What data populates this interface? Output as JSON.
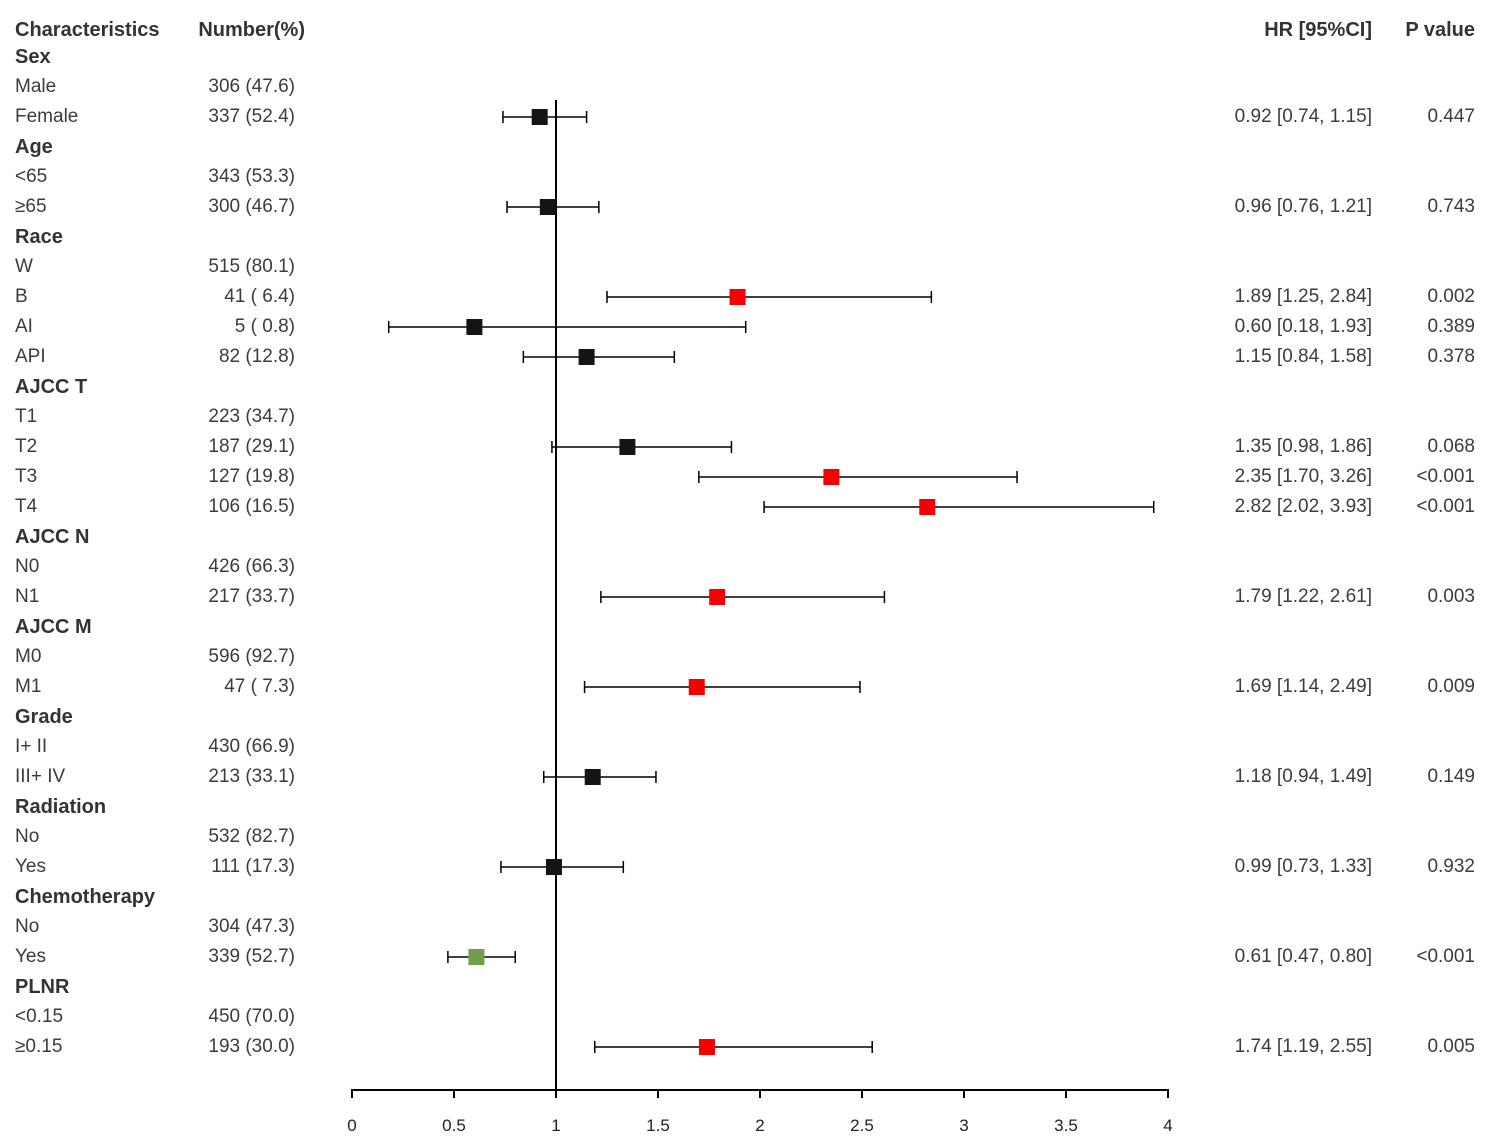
{
  "header": {
    "characteristics": "Characteristics",
    "number": "Number(%)",
    "hr": "HR [95%CI]",
    "p": "P value"
  },
  "chart_data": {
    "type": "forest",
    "title": "",
    "x_axis": {
      "min": 0,
      "max": 4,
      "ticks": [
        0,
        0.5,
        1,
        1.5,
        2,
        2.5,
        3,
        3.5,
        4
      ],
      "reference_line": 1
    },
    "colors": {
      "black": "#141414",
      "red": "#f40000",
      "green": "#6f9e4e"
    },
    "rows": [
      {
        "type": "section",
        "label": "Sex"
      },
      {
        "type": "item",
        "label": "Male",
        "number": "306 (47.6)"
      },
      {
        "type": "item",
        "label": "Female",
        "number": "337 (52.4)",
        "hr": 0.92,
        "lo": 0.74,
        "hi": 1.15,
        "color": "black",
        "hr_text": "0.92 [0.74, 1.15]",
        "p": "0.447"
      },
      {
        "type": "section",
        "label": "Age"
      },
      {
        "type": "item",
        "label": "<65",
        "number": "343 (53.3)"
      },
      {
        "type": "item",
        "label": "≥65",
        "number": "300 (46.7)",
        "hr": 0.96,
        "lo": 0.76,
        "hi": 1.21,
        "color": "black",
        "hr_text": "0.96 [0.76, 1.21]",
        "p": "0.743"
      },
      {
        "type": "section",
        "label": "Race"
      },
      {
        "type": "item",
        "label": "W",
        "number": "515 (80.1)"
      },
      {
        "type": "item",
        "label": "B",
        "number": "41 ( 6.4)",
        "hr": 1.89,
        "lo": 1.25,
        "hi": 2.84,
        "color": "red",
        "hr_text": "1.89 [1.25, 2.84]",
        "p": "0.002"
      },
      {
        "type": "item",
        "label": "AI",
        "number": "5 ( 0.8)",
        "hr": 0.6,
        "lo": 0.18,
        "hi": 1.93,
        "color": "black",
        "hr_text": "0.60 [0.18, 1.93]",
        "p": "0.389"
      },
      {
        "type": "item",
        "label": "API",
        "number": "82 (12.8)",
        "hr": 1.15,
        "lo": 0.84,
        "hi": 1.58,
        "color": "black",
        "hr_text": "1.15 [0.84, 1.58]",
        "p": "0.378"
      },
      {
        "type": "section",
        "label": "AJCC T"
      },
      {
        "type": "item",
        "label": "T1",
        "number": "223 (34.7)"
      },
      {
        "type": "item",
        "label": "T2",
        "number": "187 (29.1)",
        "hr": 1.35,
        "lo": 0.98,
        "hi": 1.86,
        "color": "black",
        "hr_text": "1.35 [0.98, 1.86]",
        "p": "0.068"
      },
      {
        "type": "item",
        "label": "T3",
        "number": "127 (19.8)",
        "hr": 2.35,
        "lo": 1.7,
        "hi": 3.26,
        "color": "red",
        "hr_text": "2.35 [1.70, 3.26]",
        "p": "<0.001"
      },
      {
        "type": "item",
        "label": "T4",
        "number": "106 (16.5)",
        "hr": 2.82,
        "lo": 2.02,
        "hi": 3.93,
        "color": "red",
        "hr_text": "2.82 [2.02, 3.93]",
        "p": "<0.001"
      },
      {
        "type": "section",
        "label": "AJCC N"
      },
      {
        "type": "item",
        "label": "N0",
        "number": "426 (66.3)"
      },
      {
        "type": "item",
        "label": "N1",
        "number": "217 (33.7)",
        "hr": 1.79,
        "lo": 1.22,
        "hi": 2.61,
        "color": "red",
        "hr_text": "1.79 [1.22, 2.61]",
        "p": "0.003"
      },
      {
        "type": "section",
        "label": "AJCC M"
      },
      {
        "type": "item",
        "label": "M0",
        "number": "596 (92.7)"
      },
      {
        "type": "item",
        "label": "M1",
        "number": "47 ( 7.3)",
        "hr": 1.69,
        "lo": 1.14,
        "hi": 2.49,
        "color": "red",
        "hr_text": "1.69 [1.14, 2.49]",
        "p": "0.009"
      },
      {
        "type": "section",
        "label": "Grade"
      },
      {
        "type": "item",
        "label": "I+ II",
        "number": "430 (66.9)"
      },
      {
        "type": "item",
        "label": "III+ IV",
        "number": "213 (33.1)",
        "hr": 1.18,
        "lo": 0.94,
        "hi": 1.49,
        "color": "black",
        "hr_text": "1.18 [0.94, 1.49]",
        "p": "0.149"
      },
      {
        "type": "section",
        "label": "Radiation"
      },
      {
        "type": "item",
        "label": "No",
        "number": "532 (82.7)"
      },
      {
        "type": "item",
        "label": "Yes",
        "number": "111 (17.3)",
        "hr": 0.99,
        "lo": 0.73,
        "hi": 1.33,
        "color": "black",
        "hr_text": "0.99 [0.73, 1.33]",
        "p": "0.932"
      },
      {
        "type": "section",
        "label": "Chemotherapy"
      },
      {
        "type": "item",
        "label": "No",
        "number": "304 (47.3)"
      },
      {
        "type": "item",
        "label": "Yes",
        "number": "339 (52.7)",
        "hr": 0.61,
        "lo": 0.47,
        "hi": 0.8,
        "color": "green",
        "hr_text": "0.61 [0.47, 0.80]",
        "p": "<0.001"
      },
      {
        "type": "section",
        "label": "PLNR"
      },
      {
        "type": "item",
        "label": "<0.15",
        "number": "450 (70.0)"
      },
      {
        "type": "item",
        "label": "≥0.15",
        "number": "193 (30.0)",
        "hr": 1.74,
        "lo": 1.19,
        "hi": 2.55,
        "color": "red",
        "hr_text": "1.74 [1.19, 2.55]",
        "p": "0.005"
      }
    ]
  }
}
